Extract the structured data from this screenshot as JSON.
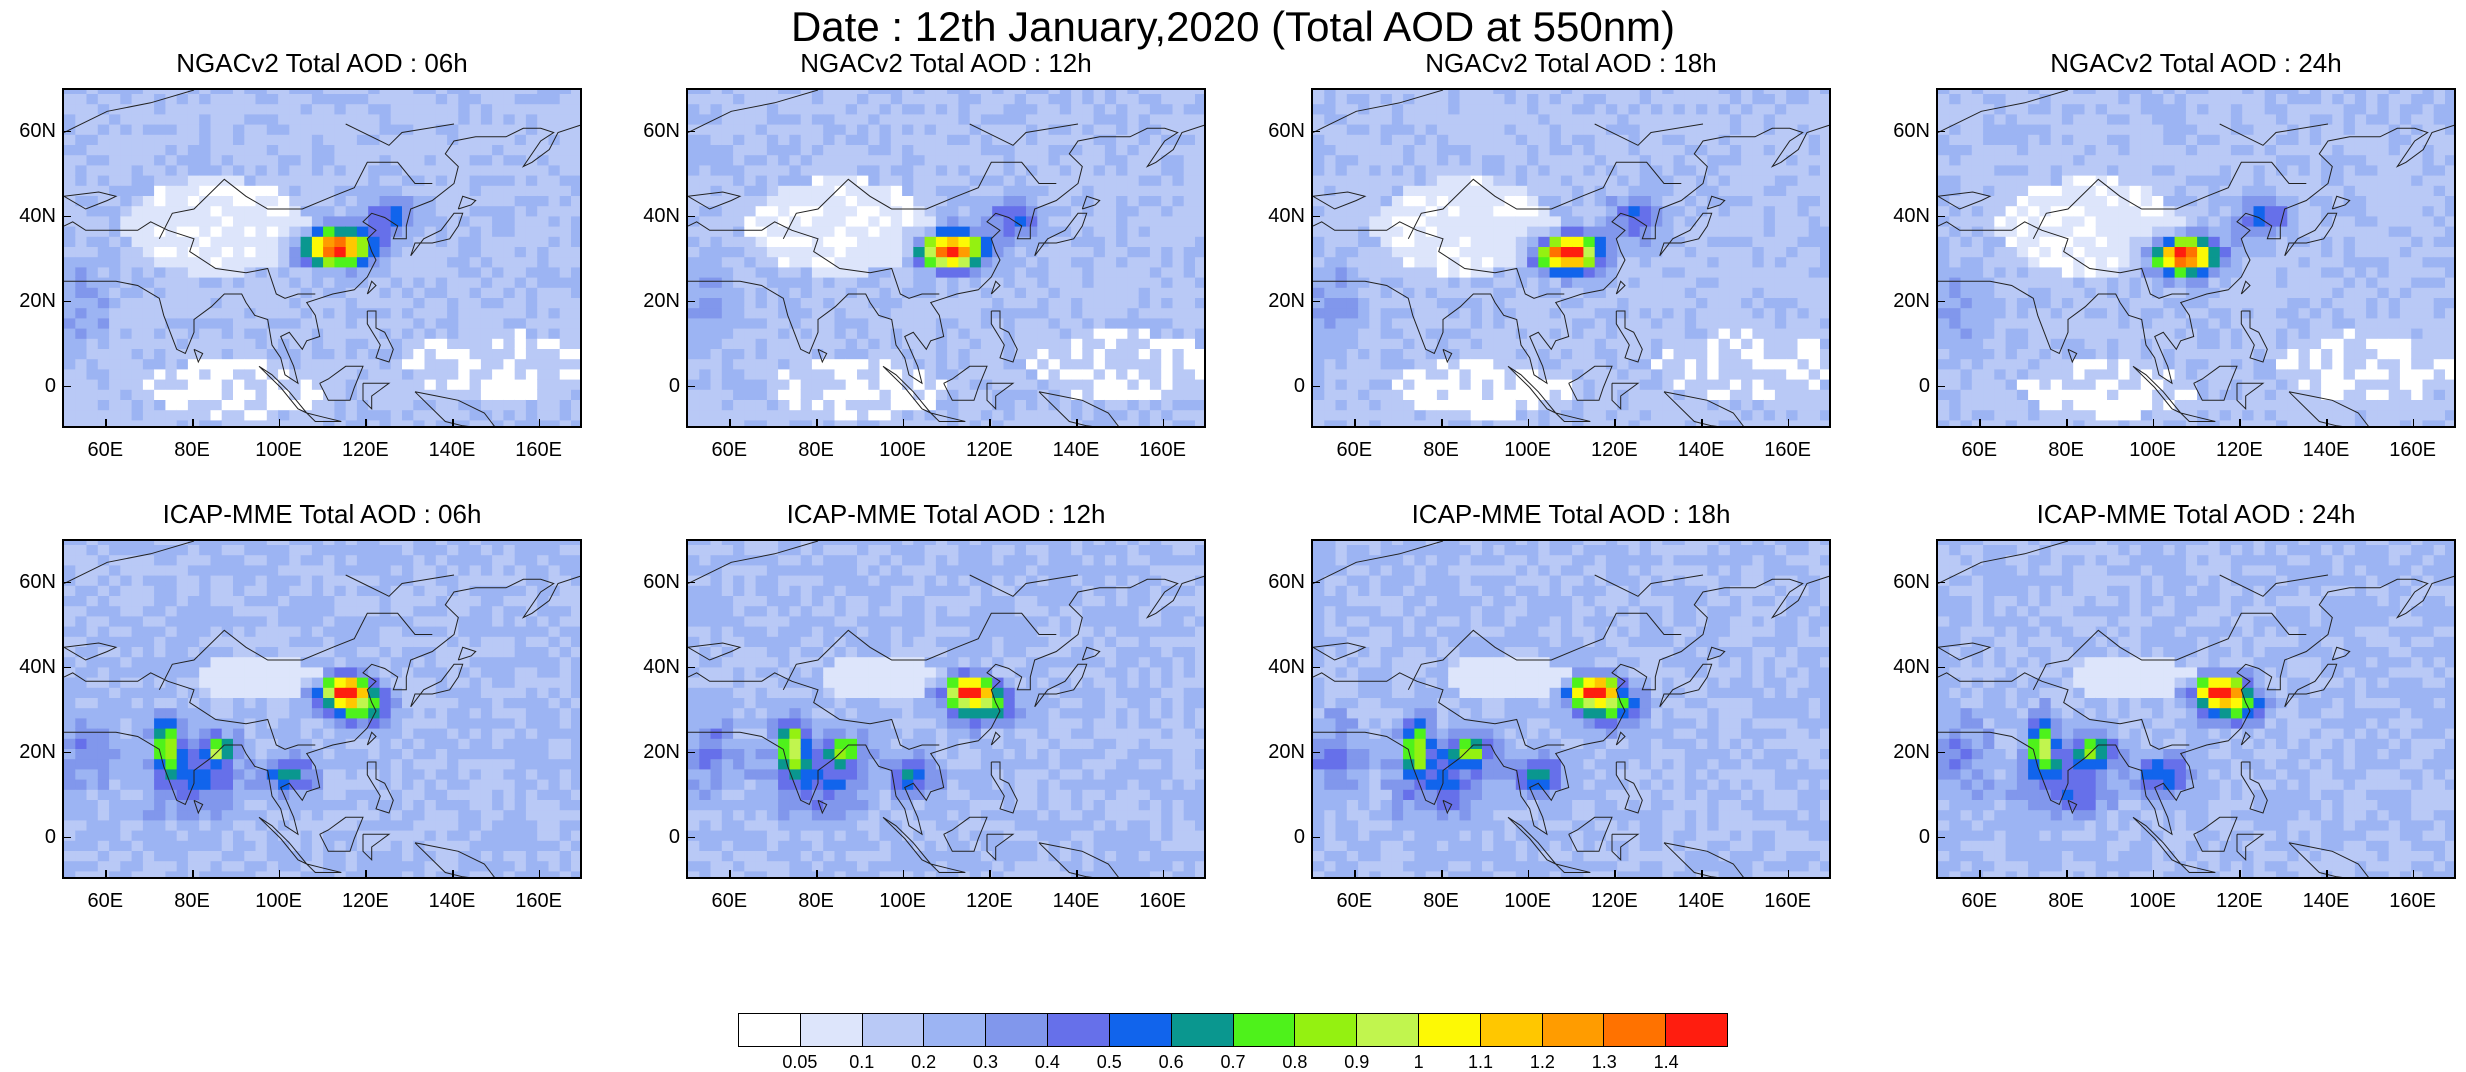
{
  "title": "Date : 12th January,2020 (Total AOD at 550nm)",
  "panels": [
    {
      "title": "NGACv2 Total AOD : 06h",
      "model": "ngac",
      "hour": 6
    },
    {
      "title": "NGACv2 Total AOD : 12h",
      "model": "ngac",
      "hour": 12
    },
    {
      "title": "NGACv2 Total AOD : 18h",
      "model": "ngac",
      "hour": 18
    },
    {
      "title": "NGACv2 Total AOD : 24h",
      "model": "ngac",
      "hour": 24
    },
    {
      "title": "ICAP-MME Total AOD : 06h",
      "model": "icap",
      "hour": 6
    },
    {
      "title": "ICAP-MME Total AOD : 12h",
      "model": "icap",
      "hour": 12
    },
    {
      "title": "ICAP-MME Total AOD : 18h",
      "model": "icap",
      "hour": 18
    },
    {
      "title": "ICAP-MME Total AOD : 24h",
      "model": "icap",
      "hour": 24
    }
  ],
  "map": {
    "lon_range": [
      50,
      170
    ],
    "lat_range": [
      -10,
      70
    ],
    "lon_ticks": [
      "60E",
      "80E",
      "100E",
      "120E",
      "140E",
      "160E"
    ],
    "lat_ticks": [
      "60N",
      "40N",
      "20N",
      "0"
    ]
  },
  "colorbar": {
    "labels": [
      "0.05",
      "0.1",
      "0.2",
      "0.3",
      "0.4",
      "0.5",
      "0.6",
      "0.7",
      "0.8",
      "0.9",
      "1",
      "1.1",
      "1.2",
      "1.3",
      "1.4"
    ],
    "colors": [
      "#ffffff",
      "#dde5fb",
      "#b9c9f6",
      "#9cb4f3",
      "#8197ec",
      "#6670ea",
      "#1164ec",
      "#0a978f",
      "#4ef21b",
      "#94f111",
      "#c1f54e",
      "#fdf905",
      "#ffc700",
      "#ff9c00",
      "#ff7200",
      "#ff1d0f"
    ]
  }
}
